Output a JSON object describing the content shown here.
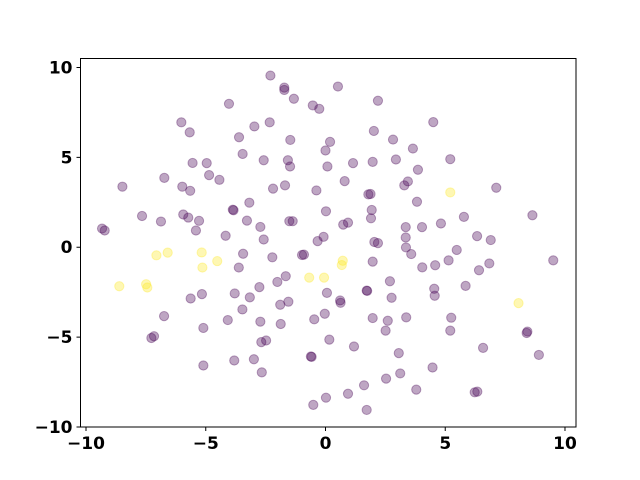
{
  "chart_data": {
    "type": "scatter",
    "title": "",
    "xlabel": "",
    "ylabel": "",
    "xlim": [
      -10.23,
      10.46
    ],
    "ylim": [
      -10,
      10.5
    ],
    "grid": false,
    "legend": "none",
    "colors": {
      "0": "#440154",
      "1": "#fde725"
    },
    "alpha": 0.35,
    "xticks": [
      {
        "value": -10,
        "label": "−10"
      },
      {
        "value": -5,
        "label": "−5"
      },
      {
        "value": 0,
        "label": "0"
      },
      {
        "value": 5,
        "label": "5"
      },
      {
        "value": 10,
        "label": "10"
      }
    ],
    "yticks": [
      {
        "value": -10,
        "label": "−10"
      },
      {
        "value": -5,
        "label": "−5"
      },
      {
        "value": 0,
        "label": "0"
      },
      {
        "value": 5,
        "label": "5"
      },
      {
        "value": 10,
        "label": "10"
      }
    ],
    "points": [
      [
        -2.3,
        9.55,
        0
      ],
      [
        -1.72,
        8.88,
        0
      ],
      [
        -1.72,
        8.75,
        0
      ],
      [
        -1.32,
        8.26,
        0
      ],
      [
        -4.03,
        7.98,
        0
      ],
      [
        -0.53,
        7.89,
        0
      ],
      [
        -0.26,
        7.7,
        0
      ],
      [
        -6.02,
        6.95,
        0
      ],
      [
        -2.33,
        6.95,
        0
      ],
      [
        -2.97,
        6.72,
        0
      ],
      [
        -5.67,
        6.39,
        0
      ],
      [
        -3.61,
        6.12,
        0
      ],
      [
        -1.47,
        5.97,
        0
      ],
      [
        0.19,
        5.86,
        0
      ],
      [
        -3.46,
        5.19,
        0
      ],
      [
        0.0,
        5.38,
        0
      ],
      [
        -5.55,
        4.69,
        0
      ],
      [
        -4.96,
        4.68,
        0
      ],
      [
        -2.58,
        4.84,
        0
      ],
      [
        -1.57,
        4.84,
        0
      ],
      [
        -1.48,
        4.49,
        0
      ],
      [
        0.08,
        4.49,
        0
      ],
      [
        -6.73,
        3.86,
        0
      ],
      [
        -4.86,
        4.01,
        0
      ],
      [
        -4.43,
        3.75,
        0
      ],
      [
        -8.48,
        3.37,
        0
      ],
      [
        -5.98,
        3.37,
        0
      ],
      [
        -5.65,
        3.14,
        0
      ],
      [
        -2.19,
        3.26,
        0
      ],
      [
        -1.69,
        3.44,
        0
      ],
      [
        -0.38,
        3.16,
        0
      ],
      [
        -3.87,
        2.09,
        0
      ],
      [
        -3.84,
        2.06,
        0
      ],
      [
        -3.18,
        2.48,
        0
      ],
      [
        -7.66,
        1.74,
        0
      ],
      [
        -6.87,
        1.43,
        0
      ],
      [
        -5.94,
        1.82,
        0
      ],
      [
        -5.73,
        1.65,
        0
      ],
      [
        -5.28,
        1.47,
        0
      ],
      [
        -3.28,
        1.48,
        0
      ],
      [
        -1.51,
        1.45,
        0
      ],
      [
        -1.37,
        1.45,
        0
      ],
      [
        -2.72,
        1.13,
        0
      ],
      [
        0.02,
        2.0,
        0
      ],
      [
        -9.33,
        1.04,
        0
      ],
      [
        -9.22,
        0.93,
        0
      ],
      [
        -5.41,
        0.93,
        0
      ],
      [
        -4.17,
        0.64,
        0
      ],
      [
        -2.58,
        0.43,
        0
      ],
      [
        -0.08,
        0.58,
        0
      ],
      [
        -0.33,
        0.34,
        0
      ],
      [
        0.52,
        8.94,
        0
      ],
      [
        2.19,
        8.15,
        0
      ],
      [
        4.5,
        6.96,
        0
      ],
      [
        2.02,
        6.47,
        0
      ],
      [
        2.82,
        5.99,
        0
      ],
      [
        3.65,
        5.49,
        0
      ],
      [
        5.21,
        4.9,
        0
      ],
      [
        1.15,
        4.68,
        0
      ],
      [
        1.97,
        4.75,
        0
      ],
      [
        2.94,
        4.88,
        0
      ],
      [
        3.86,
        4.31,
        0
      ],
      [
        0.8,
        3.68,
        0
      ],
      [
        3.29,
        3.44,
        0
      ],
      [
        3.44,
        3.66,
        0
      ],
      [
        7.13,
        3.31,
        0
      ],
      [
        1.79,
        2.94,
        0
      ],
      [
        1.88,
        2.96,
        0
      ],
      [
        3.82,
        2.53,
        0
      ],
      [
        1.93,
        2.07,
        0
      ],
      [
        1.9,
        1.61,
        0
      ],
      [
        5.78,
        1.69,
        0
      ],
      [
        8.64,
        1.78,
        0
      ],
      [
        0.74,
        1.26,
        0
      ],
      [
        0.94,
        1.37,
        0
      ],
      [
        3.35,
        1.12,
        0
      ],
      [
        4.03,
        1.12,
        0
      ],
      [
        4.82,
        1.32,
        0
      ],
      [
        3.35,
        0.54,
        0
      ],
      [
        6.33,
        0.62,
        0
      ],
      [
        6.9,
        0.4,
        0
      ],
      [
        2.04,
        0.29,
        0
      ],
      [
        2.19,
        0.23,
        0
      ],
      [
        3.36,
        -0.01,
        0
      ],
      [
        5.48,
        -0.15,
        0
      ],
      [
        -3.44,
        -0.36,
        0
      ],
      [
        -2.22,
        -0.56,
        0
      ],
      [
        -0.98,
        -0.43,
        0
      ],
      [
        -0.9,
        -0.41,
        0
      ],
      [
        -3.62,
        -1.13,
        0
      ],
      [
        -1.66,
        -1.61,
        0
      ],
      [
        -2.01,
        -1.93,
        0
      ],
      [
        -2.76,
        -2.22,
        0
      ],
      [
        0.06,
        -2.54,
        0
      ],
      [
        -5.63,
        -2.85,
        0
      ],
      [
        -5.16,
        -2.61,
        0
      ],
      [
        -3.79,
        -2.57,
        0
      ],
      [
        -3.16,
        -2.79,
        0
      ],
      [
        -1.55,
        -3.03,
        0
      ],
      [
        -1.89,
        -3.2,
        0
      ],
      [
        -3.47,
        -3.46,
        0
      ],
      [
        -6.74,
        -3.83,
        0
      ],
      [
        -4.08,
        -4.05,
        0
      ],
      [
        -2.72,
        -4.14,
        0
      ],
      [
        -1.87,
        -4.27,
        0
      ],
      [
        -0.47,
        -4.01,
        0
      ],
      [
        -0.03,
        -3.7,
        0
      ],
      [
        -5.1,
        -4.49,
        0
      ],
      [
        -7.27,
        -5.05,
        0
      ],
      [
        -7.16,
        -4.95,
        0
      ],
      [
        -2.68,
        -5.28,
        0
      ],
      [
        -2.48,
        -5.19,
        0
      ],
      [
        0.16,
        -5.14,
        0
      ],
      [
        -3.81,
        -6.3,
        0
      ],
      [
        -2.99,
        -6.23,
        0
      ],
      [
        -0.61,
        -6.08,
        0
      ],
      [
        -0.58,
        -6.1,
        0
      ],
      [
        -5.1,
        -6.58,
        0
      ],
      [
        -2.66,
        -6.96,
        0
      ],
      [
        0.02,
        -8.37,
        0
      ],
      [
        -0.51,
        -8.77,
        0
      ],
      [
        3.58,
        -0.38,
        0
      ],
      [
        1.97,
        -0.8,
        0
      ],
      [
        4.04,
        -1.12,
        0
      ],
      [
        4.58,
        -1.0,
        0
      ],
      [
        5.14,
        -0.73,
        0
      ],
      [
        6.84,
        -0.9,
        0
      ],
      [
        6.41,
        -1.28,
        0
      ],
      [
        9.51,
        -0.73,
        0
      ],
      [
        2.69,
        -1.89,
        0
      ],
      [
        5.85,
        -2.15,
        0
      ],
      [
        1.72,
        -2.41,
        0
      ],
      [
        1.74,
        -2.43,
        0
      ],
      [
        4.54,
        -2.31,
        0
      ],
      [
        4.56,
        -2.7,
        0
      ],
      [
        2.76,
        -2.81,
        0
      ],
      [
        0.61,
        -2.96,
        0
      ],
      [
        0.63,
        -3.09,
        0
      ],
      [
        1.97,
        -3.94,
        0
      ],
      [
        2.6,
        -4.09,
        0
      ],
      [
        3.37,
        -3.9,
        0
      ],
      [
        5.25,
        -3.92,
        0
      ],
      [
        2.51,
        -4.64,
        0
      ],
      [
        5.21,
        -4.64,
        0
      ],
      [
        8.43,
        -4.69,
        0
      ],
      [
        8.4,
        -4.77,
        0
      ],
      [
        1.19,
        -5.52,
        0
      ],
      [
        6.58,
        -5.6,
        0
      ],
      [
        8.91,
        -5.99,
        0
      ],
      [
        3.06,
        -5.89,
        0
      ],
      [
        4.47,
        -6.69,
        0
      ],
      [
        3.12,
        -7.02,
        0
      ],
      [
        2.53,
        -7.31,
        0
      ],
      [
        1.61,
        -7.68,
        0
      ],
      [
        3.79,
        -7.92,
        0
      ],
      [
        0.94,
        -8.15,
        0
      ],
      [
        6.23,
        -8.07,
        0
      ],
      [
        6.34,
        -8.03,
        0
      ],
      [
        1.72,
        -9.05,
        0
      ],
      [
        -8.61,
        -2.17,
        1
      ],
      [
        -7.49,
        -2.06,
        1
      ],
      [
        -7.44,
        -2.24,
        1
      ],
      [
        -7.06,
        -0.45,
        1
      ],
      [
        -6.59,
        -0.3,
        1
      ],
      [
        -5.17,
        -0.29,
        1
      ],
      [
        -5.14,
        -1.13,
        1
      ],
      [
        -4.52,
        -0.77,
        1
      ],
      [
        -0.68,
        -1.69,
        1
      ],
      [
        -0.06,
        -1.69,
        1
      ],
      [
        0.72,
        -0.75,
        1
      ],
      [
        0.68,
        -0.99,
        1
      ],
      [
        8.06,
        -3.11,
        1
      ],
      [
        5.21,
        3.05,
        1
      ]
    ]
  }
}
